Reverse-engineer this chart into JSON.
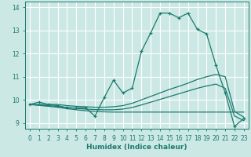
{
  "xlabel": "Humidex (Indice chaleur)",
  "background_color": "#cce8e5",
  "line_color": "#1a7a6e",
  "grid_color": "#ffffff",
  "xlim": [
    -0.5,
    23.5
  ],
  "ylim": [
    8.75,
    14.25
  ],
  "xticks": [
    0,
    1,
    2,
    3,
    4,
    5,
    6,
    7,
    8,
    9,
    10,
    11,
    12,
    13,
    14,
    15,
    16,
    17,
    18,
    19,
    20,
    21,
    22,
    23
  ],
  "yticks": [
    9,
    10,
    11,
    12,
    13,
    14
  ],
  "lines": [
    {
      "x": [
        0,
        1,
        2,
        3,
        4,
        5,
        6,
        7,
        8,
        9,
        10,
        11,
        12,
        13,
        14,
        15,
        16,
        17,
        18,
        19,
        20,
        21,
        22,
        23
      ],
      "y": [
        9.8,
        9.9,
        9.8,
        9.75,
        9.65,
        9.65,
        9.65,
        9.3,
        10.1,
        10.85,
        10.3,
        10.5,
        12.1,
        12.9,
        13.75,
        13.75,
        13.55,
        13.75,
        13.05,
        12.85,
        11.5,
        10.3,
        8.85,
        9.2
      ],
      "marker": "+"
    },
    {
      "x": [
        0,
        3,
        4,
        5,
        6,
        7,
        8,
        9,
        10,
        11,
        12,
        13,
        14,
        15,
        16,
        17,
        18,
        19,
        20,
        21,
        22,
        23
      ],
      "y": [
        9.8,
        9.8,
        9.75,
        9.72,
        9.7,
        9.68,
        9.68,
        9.7,
        9.75,
        9.85,
        10.0,
        10.15,
        10.3,
        10.45,
        10.58,
        10.72,
        10.88,
        11.0,
        11.1,
        11.0,
        9.5,
        9.25
      ],
      "marker": null
    },
    {
      "x": [
        0,
        3,
        4,
        5,
        6,
        7,
        8,
        9,
        10,
        11,
        12,
        13,
        14,
        15,
        16,
        17,
        18,
        19,
        20,
        21,
        22,
        23
      ],
      "y": [
        9.8,
        9.72,
        9.67,
        9.63,
        9.6,
        9.58,
        9.57,
        9.57,
        9.6,
        9.67,
        9.78,
        9.9,
        10.02,
        10.14,
        10.26,
        10.38,
        10.5,
        10.6,
        10.68,
        10.5,
        9.3,
        9.1
      ],
      "marker": null
    },
    {
      "x": [
        0,
        3,
        4,
        5,
        6,
        7,
        8,
        9,
        10,
        11,
        12,
        13,
        14,
        15,
        16,
        17,
        18,
        19,
        20,
        21,
        22,
        23
      ],
      "y": [
        9.8,
        9.68,
        9.62,
        9.57,
        9.53,
        9.5,
        9.48,
        9.47,
        9.47,
        9.47,
        9.47,
        9.47,
        9.47,
        9.47,
        9.47,
        9.47,
        9.47,
        9.47,
        9.47,
        9.47,
        9.47,
        9.47
      ],
      "marker": null
    }
  ]
}
